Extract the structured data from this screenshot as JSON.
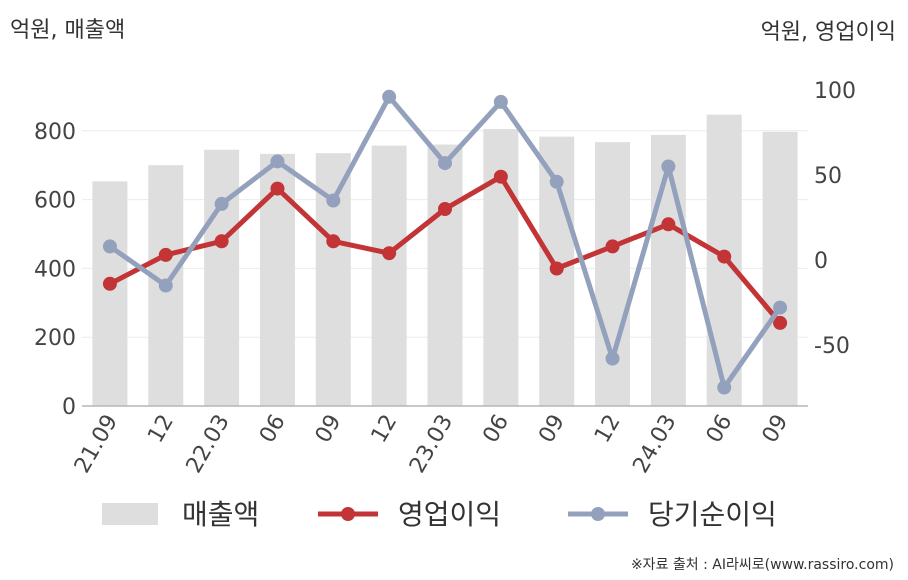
{
  "left_unit": "억원, 매출액",
  "right_unit": "억원, 영업이익",
  "source": "※자료 출처 : AI라씨로(www.rassiro.com)",
  "chart_data": {
    "type": "bar",
    "categories": [
      "21.09",
      "12",
      "22.03",
      "06",
      "09",
      "12",
      "23.03",
      "06",
      "09",
      "12",
      "24.03",
      "06",
      "09"
    ],
    "y_left": {
      "ylim": [
        0,
        900
      ],
      "ticks": [
        0,
        200,
        400,
        600,
        800
      ]
    },
    "y_right": {
      "ylim": [
        -87,
        100
      ],
      "ticks": [
        -50,
        0,
        50,
        100
      ]
    },
    "grid": true,
    "legend_position": "bottom",
    "series": [
      {
        "name": "매출액",
        "type": "bar",
        "axis": "left",
        "color": "#dedede",
        "values": [
          653,
          700,
          745,
          733,
          735,
          757,
          760,
          805,
          783,
          767,
          788,
          847,
          797
        ]
      },
      {
        "name": "영업이익",
        "type": "line",
        "axis": "right",
        "color": "#c23435",
        "values": [
          -14,
          3,
          11,
          42,
          11,
          4,
          30,
          49,
          -5,
          8,
          21,
          2,
          -37
        ]
      },
      {
        "name": "당기순이익",
        "type": "line",
        "axis": "right",
        "color": "#93a1bd",
        "values": [
          8,
          -15,
          33,
          58,
          35,
          96,
          57,
          93,
          46,
          -58,
          55,
          -75,
          -28
        ]
      }
    ]
  }
}
